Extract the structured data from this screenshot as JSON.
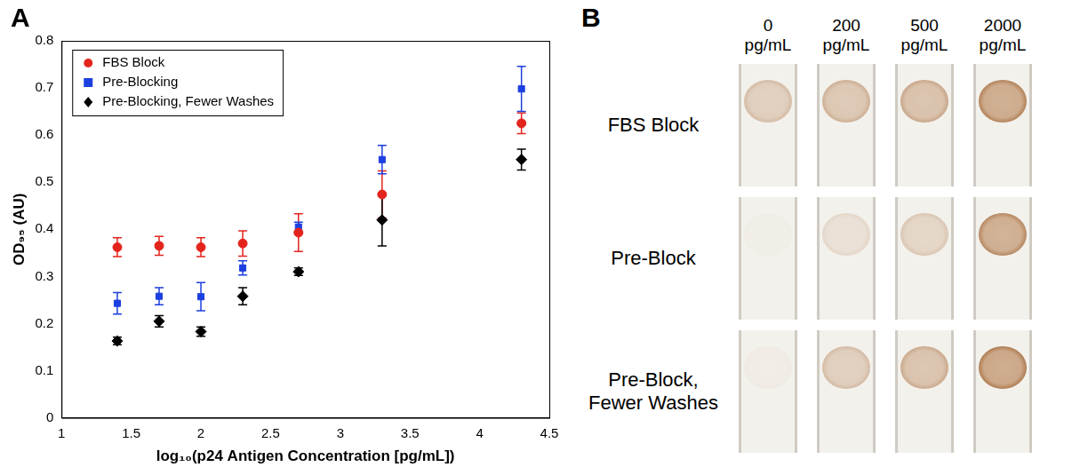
{
  "chart_data": {
    "panel_label": "A",
    "type": "scatter",
    "x_label": "log₁₀(p24 Antigen Concentration [pg/mL])",
    "y_label": "OD₉₅ (AU)",
    "x": [
      1.4,
      1.7,
      2.0,
      2.3,
      2.7,
      3.3,
      4.3
    ],
    "series": [
      {
        "name": "FBS Block",
        "color": "#e3241d",
        "marker": "circle",
        "values": [
          0.362,
          0.365,
          0.362,
          0.37,
          0.393,
          0.474,
          0.625
        ],
        "errors": [
          0.02,
          0.02,
          0.02,
          0.027,
          0.04,
          0.05,
          0.022
        ]
      },
      {
        "name": "Pre-Blocking",
        "color": "#1c3fe0",
        "marker": "square",
        "values": [
          0.243,
          0.258,
          0.257,
          0.318,
          0.405,
          0.548,
          0.698
        ],
        "errors": [
          0.023,
          0.018,
          0.03,
          0.015,
          0.01,
          0.03,
          0.048
        ]
      },
      {
        "name": "Pre-Blocking, Fewer Washes",
        "color": "#000000",
        "marker": "diamond",
        "values": [
          0.163,
          0.205,
          0.183,
          0.258,
          0.31,
          0.42,
          0.548
        ],
        "errors": [
          0.008,
          0.012,
          0.01,
          0.018,
          0.008,
          0.055,
          0.022
        ]
      }
    ],
    "xlim": [
      1,
      4.5
    ],
    "xticks": [
      1,
      1.5,
      2,
      2.5,
      3,
      3.5,
      4,
      4.5
    ],
    "ylim": [
      0,
      0.8
    ],
    "yticks": [
      0,
      0.1,
      0.2,
      0.3,
      0.4,
      0.5,
      0.6,
      0.7,
      0.8
    ],
    "grid": false,
    "legend": "upper left"
  },
  "photo_panel": {
    "panel_label": "B",
    "columns": [
      "0 pg/mL",
      "200 pg/mL",
      "500 pg/mL",
      "2000 pg/mL"
    ],
    "rows": [
      "FBS Block",
      "Pre-Block",
      "Pre-Block, Fewer Washes"
    ]
  }
}
